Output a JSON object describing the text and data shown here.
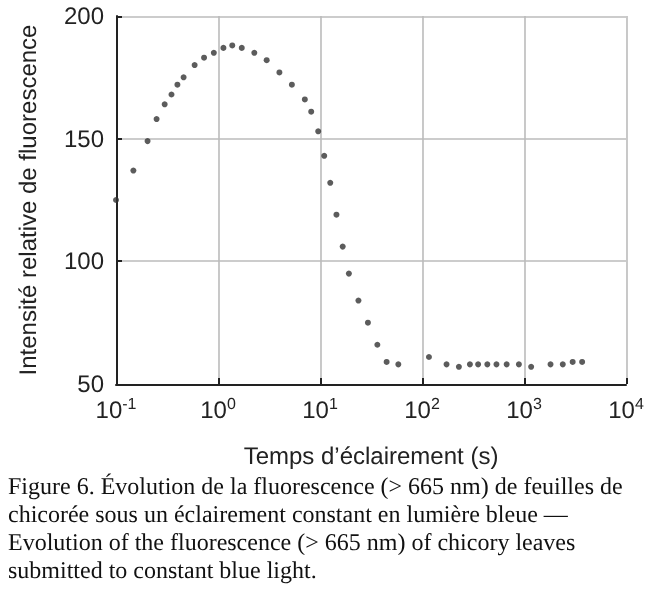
{
  "chart_data": {
    "type": "scatter",
    "xlabel": "Temps d’éclairement (s)",
    "ylabel": "Intensité relative de fluorescence",
    "x": [
      0.1,
      0.148,
      0.204,
      0.25,
      0.3,
      0.35,
      0.4,
      0.46,
      0.59,
      0.73,
      0.91,
      1.13,
      1.38,
      1.71,
      2.27,
      3.0,
      4.0,
      5.3,
      7.1,
      8.2,
      9.6,
      11,
      12.6,
      14.5,
      16.7,
      19.2,
      23.8,
      29.5,
      36.5,
      45,
      58.6,
      117,
      174,
      230,
      295,
      355,
      437,
      537,
      676,
      891,
      1175,
      1820,
      2400,
      3000,
      3715
    ],
    "series": [
      {
        "color": "#333333",
        "values": [
          125,
          137,
          149,
          158,
          164,
          168,
          172,
          175,
          180,
          183,
          185,
          187,
          188,
          187,
          185,
          182,
          177,
          172,
          166,
          161,
          153,
          143,
          132,
          119,
          106,
          95,
          84,
          75,
          66,
          59,
          58,
          61,
          58,
          57,
          58,
          58,
          58,
          58,
          58,
          58,
          57,
          58,
          58,
          59,
          59
        ]
      }
    ],
    "xlim": [
      0.1,
      10000
    ],
    "xticks": [
      {
        "value": 0.1,
        "label": "10$^{-1}$"
      },
      {
        "value": 1,
        "label": "10$^{0}$"
      },
      {
        "value": 10,
        "label": "10$^{1}$"
      },
      {
        "value": 100,
        "label": "10$^{2}$"
      },
      {
        "value": 1000,
        "label": "10$^{3}$"
      },
      {
        "value": 10000,
        "label": "10$^{4}$"
      }
    ],
    "ylim": [
      50,
      200
    ],
    "yticks": [
      50,
      100,
      150,
      200
    ],
    "log": "x",
    "grid": true,
    "marker": "circle",
    "annotations": [
      "Figure 6. Évolution de la fluorescence (> 665 nm) de feuilles de chicorée sous un éclairement constant en lumière bleue — Evolution of the fluorescence (> 665 nm) of chicory leaves submitted to constant blue light."
    ]
  }
}
